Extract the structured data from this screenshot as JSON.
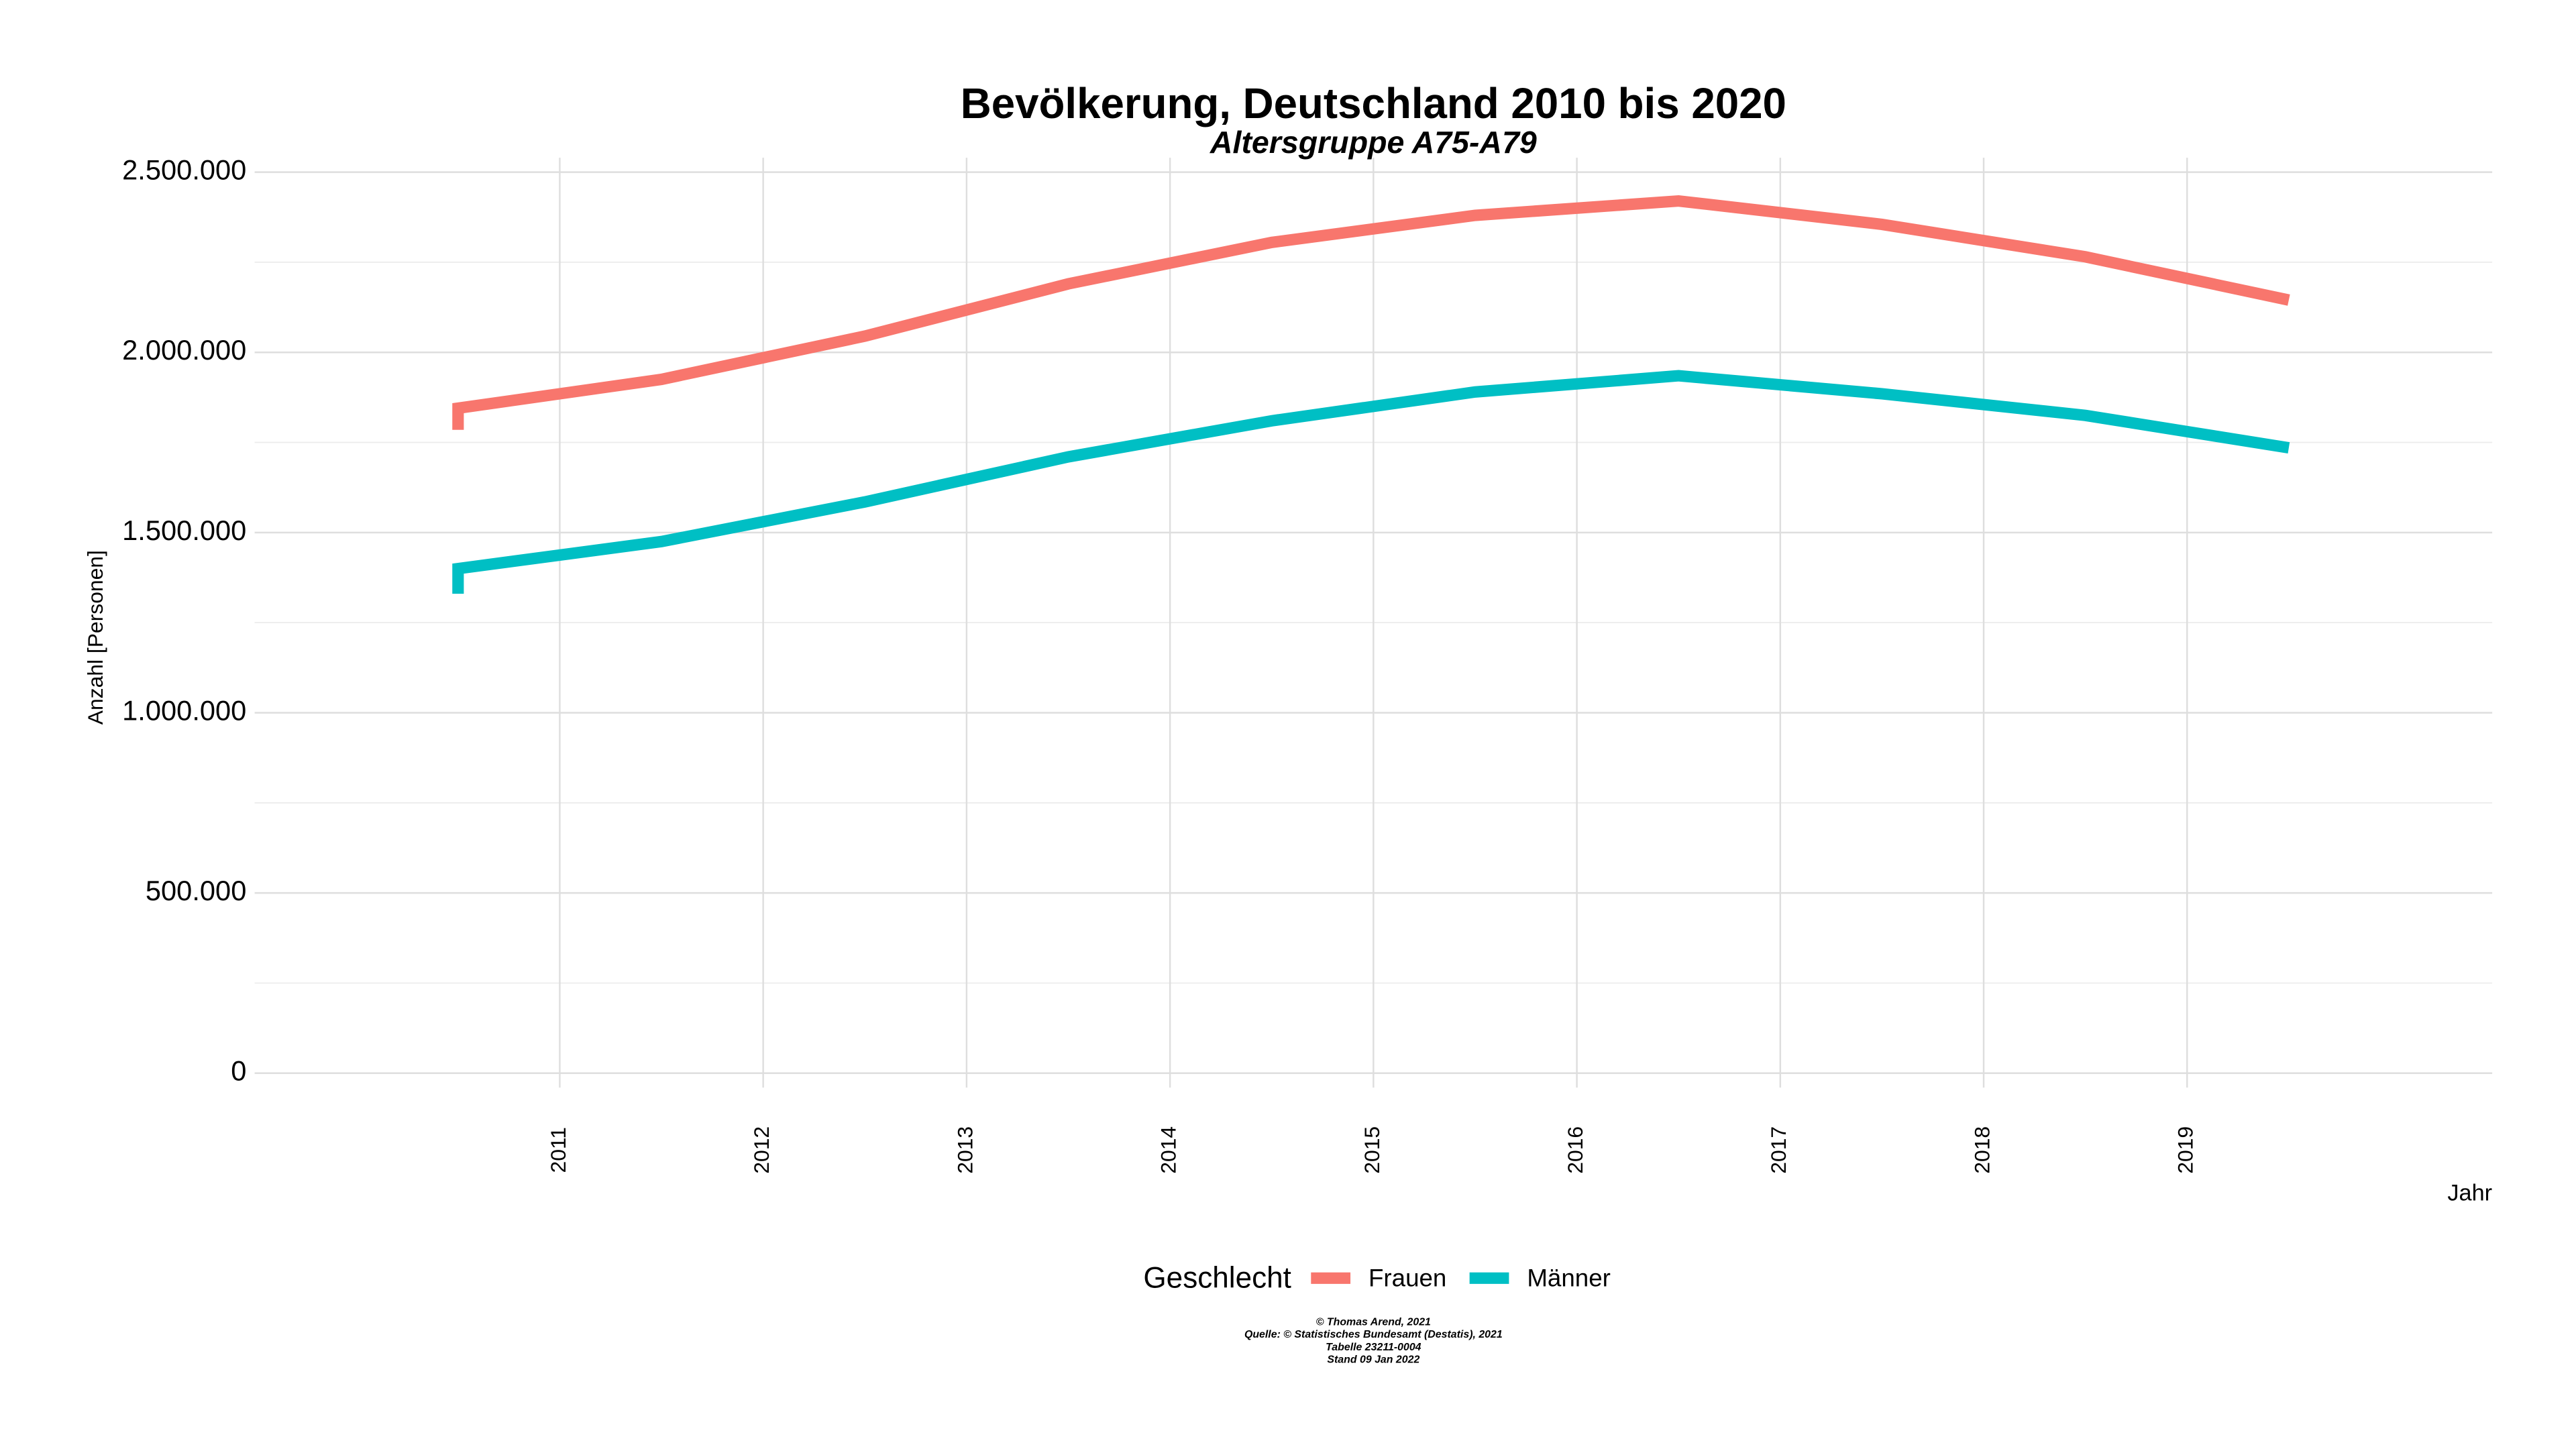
{
  "chart_data": {
    "type": "line",
    "title": "Bevölkerung, Deutschland 2010 bis 2020",
    "subtitle": "Altersgruppe A75-A79",
    "x_label": "Jahr",
    "y_label": "Anzahl [Personen]",
    "legend_title": "Geschlecht",
    "legend_position": "bottom",
    "caption": [
      "© Thomas Arend, 2021",
      "Quelle: © Statistisches Bundesamt (Destatis), 2021",
      "Tabelle 23211-0004",
      "Stand 09 Jan 2022"
    ],
    "x": [
      2010.5,
      2010.5,
      2011.5,
      2012.5,
      2013.5,
      2014.5,
      2015.5,
      2016.5,
      2017.5,
      2018.5,
      2019.5
    ],
    "series": [
      {
        "name": "Frauen",
        "color": "#F8766D",
        "values": [
          1785000,
          1845000,
          1925000,
          2045000,
          2190000,
          2305000,
          2380000,
          2420000,
          2355000,
          2265000,
          2145000
        ]
      },
      {
        "name": "Männer",
        "color": "#00BFC4",
        "values": [
          1330000,
          1400000,
          1475000,
          1585000,
          1710000,
          1810000,
          1890000,
          1935000,
          1885000,
          1825000,
          1735000
        ]
      }
    ],
    "xlim": [
      2009.5,
      2020.5
    ],
    "xticks": [
      2011,
      2012,
      2013,
      2014,
      2015,
      2016,
      2017,
      2018,
      2019
    ],
    "ylim": [
      -40000,
      2540000
    ],
    "yticks": [
      {
        "value": 0,
        "label": "0"
      },
      {
        "value": 500000,
        "label": "500.000"
      },
      {
        "value": 1000000,
        "label": "1.000.000"
      },
      {
        "value": 1500000,
        "label": "1.500.000"
      },
      {
        "value": 2000000,
        "label": "2.000.000"
      },
      {
        "value": 2500000,
        "label": "2.500.000"
      }
    ],
    "y_minor_ticks": [
      250000,
      750000,
      1250000,
      1750000,
      2250000
    ],
    "grid": true
  }
}
